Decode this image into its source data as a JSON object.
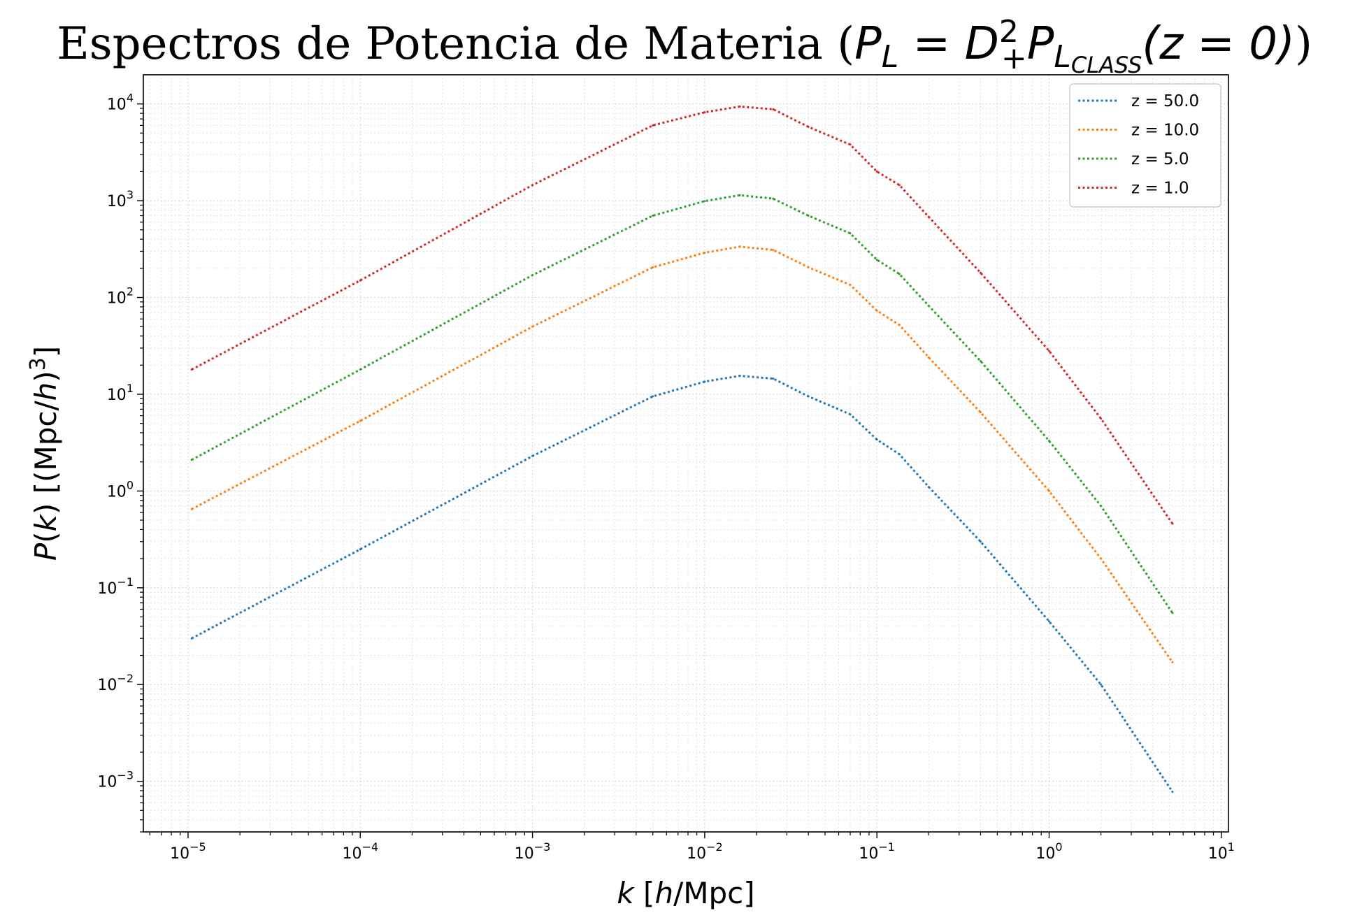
{
  "chart_data": {
    "type": "line",
    "title": {
      "prefix": "Espectros de Potencia de Materia (",
      "formula": "P_L = D_+^2 P_{L_{CLASS}}(z = 0)",
      "suffix": ")"
    },
    "xlabel": "k [h/Mpc]",
    "ylabel": "P(k) [(Mpc/h)^3]",
    "xscale": "log",
    "yscale": "log",
    "xlim": [
      5.5e-06,
      11
    ],
    "ylim": [
      0.0003,
      20000
    ],
    "x_ticks": [
      {
        "base": "10",
        "exp": "−5",
        "value": 1e-05
      },
      {
        "base": "10",
        "exp": "−4",
        "value": 0.0001
      },
      {
        "base": "10",
        "exp": "−3",
        "value": 0.001
      },
      {
        "base": "10",
        "exp": "−2",
        "value": 0.01
      },
      {
        "base": "10",
        "exp": "−1",
        "value": 0.1
      },
      {
        "base": "10",
        "exp": "0",
        "value": 1
      },
      {
        "base": "10",
        "exp": "1",
        "value": 10
      }
    ],
    "y_ticks": [
      {
        "base": "10",
        "exp": "−3",
        "value": 0.001
      },
      {
        "base": "10",
        "exp": "−2",
        "value": 0.01
      },
      {
        "base": "10",
        "exp": "−1",
        "value": 0.1
      },
      {
        "base": "10",
        "exp": "0",
        "value": 1
      },
      {
        "base": "10",
        "exp": "1",
        "value": 10
      },
      {
        "base": "10",
        "exp": "2",
        "value": 100
      },
      {
        "base": "10",
        "exp": "3",
        "value": 1000
      },
      {
        "base": "10",
        "exp": "4",
        "value": 10000
      }
    ],
    "grid": true,
    "legend_position": "top-right",
    "series": [
      {
        "name": "z = 50.0",
        "color": "#1f77b4",
        "x": [
          1.05e-05,
          0.0001,
          0.001,
          0.005,
          0.01,
          0.016,
          0.025,
          0.04,
          0.07,
          0.1,
          0.135,
          0.2,
          0.4,
          1,
          2,
          5.2
        ],
        "y": [
          0.03,
          0.25,
          2.3,
          9.5,
          13.5,
          15.5,
          14.5,
          9.5,
          6.2,
          3.4,
          2.4,
          1.1,
          0.3,
          0.045,
          0.01,
          0.00078
        ]
      },
      {
        "name": "z = 10.0",
        "color": "#ff7f0e",
        "x": [
          1.05e-05,
          0.0001,
          0.001,
          0.005,
          0.01,
          0.016,
          0.025,
          0.04,
          0.07,
          0.1,
          0.135,
          0.2,
          0.4,
          1,
          2,
          5.2
        ],
        "y": [
          0.65,
          5.3,
          50,
          205,
          290,
          335,
          310,
          205,
          135,
          73,
          52,
          24,
          6.5,
          1,
          0.2,
          0.017
        ]
      },
      {
        "name": "z = 5.0",
        "color": "#2ca02c",
        "x": [
          1.05e-05,
          0.0001,
          0.001,
          0.005,
          0.01,
          0.016,
          0.025,
          0.04,
          0.07,
          0.1,
          0.135,
          0.2,
          0.4,
          1,
          2,
          5.2
        ],
        "y": [
          2.1,
          18,
          170,
          700,
          990,
          1140,
          1050,
          700,
          460,
          245,
          175,
          82,
          22,
          3.3,
          0.7,
          0.055
        ]
      },
      {
        "name": "z = 1.0",
        "color": "#d62728",
        "x": [
          1.05e-05,
          0.0001,
          0.001,
          0.005,
          0.01,
          0.016,
          0.025,
          0.04,
          0.07,
          0.1,
          0.135,
          0.2,
          0.4,
          1,
          2,
          5.2
        ],
        "y": [
          18,
          150,
          1450,
          6000,
          8200,
          9400,
          8800,
          5800,
          3800,
          2000,
          1450,
          680,
          180,
          28,
          5.6,
          0.46
        ]
      }
    ]
  }
}
